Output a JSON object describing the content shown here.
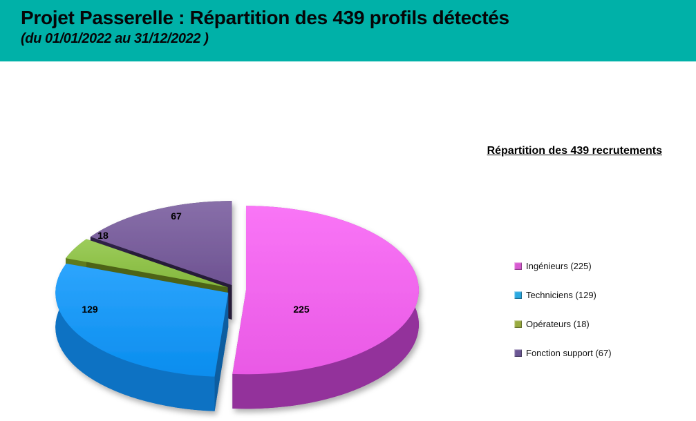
{
  "header": {
    "title": "Projet Passerelle : Répartition des 439 profils détectés",
    "subtitle": "(du 01/01/2022 au 31/12/2022 )",
    "background_color": "#00B1A8"
  },
  "chart_data": {
    "type": "pie",
    "style": "3d-exploded",
    "title": "Répartition des 439 recrutements",
    "total": 439,
    "categories": [
      "Ingénieurs",
      "Techniciens",
      "Opérateurs",
      "Fonction support"
    ],
    "values": [
      225,
      129,
      18,
      67
    ],
    "colors": [
      "#F85FF4",
      "#0B96FD",
      "#8CC440",
      "#75589B"
    ],
    "side_colors": [
      "#93339B",
      "#1172C3",
      "#5E7A1E",
      "#2E2344"
    ],
    "data_labels": [
      "225",
      "129",
      "18",
      "67"
    ],
    "legend_position": "right",
    "labels_shown": true
  },
  "legend": {
    "title": "Répartition des 439 recrutements",
    "items": [
      {
        "label": "Ingénieurs (225)",
        "color": "#D85BD2"
      },
      {
        "label": "Techniciens (129)",
        "color": "#2BA9E1"
      },
      {
        "label": "Opérateurs (18)",
        "color": "#99AB40"
      },
      {
        "label": "Fonction support (67)",
        "color": "#6B5794"
      }
    ]
  }
}
